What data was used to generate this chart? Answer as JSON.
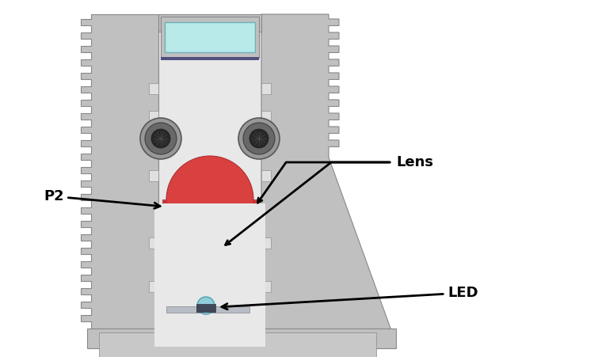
{
  "bg_color": "#ffffff",
  "gray_body": "#c0c0c0",
  "gray_dark": "#909090",
  "gray_light": "#d8d8d8",
  "gray_inner": "#e0e0e0",
  "red_lens": "#d94040",
  "red_base": "#c03030",
  "cyan_glass": "#b8eaea",
  "led_color": "#90d8e0",
  "black": "#000000",
  "white": "#ffffff",
  "label_p2": "P2",
  "label_lens": "Lens",
  "label_led": "LED",
  "screw_outer": "#989898",
  "screw_mid": "#686868",
  "screw_inner": "#282828"
}
